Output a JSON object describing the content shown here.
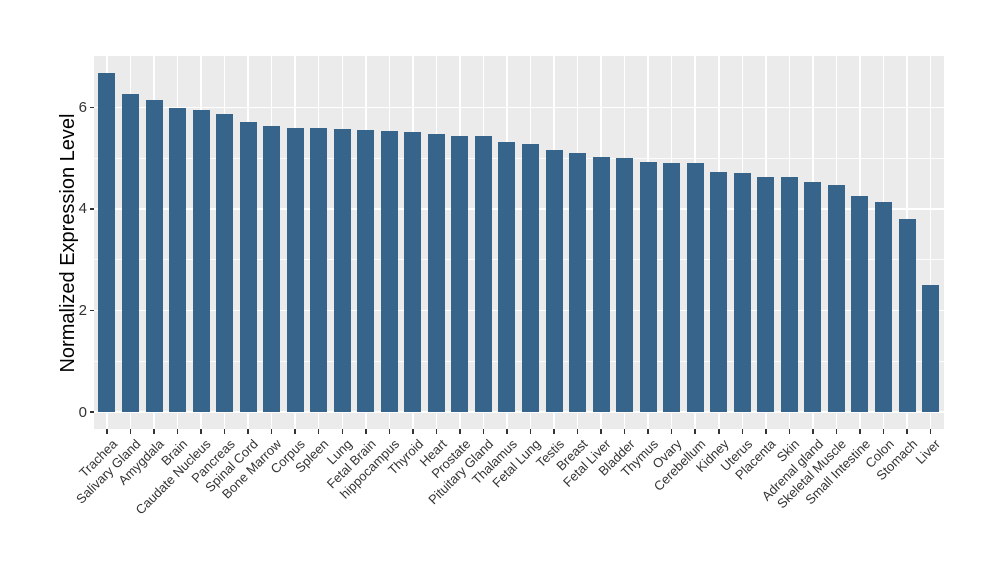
{
  "figure": {
    "background": "#FFFFFF"
  },
  "chart_data": {
    "type": "bar",
    "title": "",
    "xlabel": "",
    "ylabel": "Normalized Expression Level",
    "categories": [
      "Trachea",
      "Salivary Gland",
      "Amygdala",
      "Brain",
      "Caudate Nucleus",
      "Pancreas",
      "Spinal Cord",
      "Bone Marrow",
      "Corpus",
      "Spleen",
      "Lung",
      "Fetal Brain",
      "hippocampus",
      "Thyroid",
      "Heart",
      "Prostate",
      "Pituitary Gland",
      "Thalamus",
      "Fetal Lung",
      "Testis",
      "Breast",
      "Fetal Liver",
      "Bladder",
      "Thymus",
      "Ovary",
      "Cerebellum",
      "Kidney",
      "Uterus",
      "Placenta",
      "Skin",
      "Adrenal gland",
      "Skeletal Muscle",
      "Small Intestine",
      "Colon",
      "Stomach",
      "Liver"
    ],
    "values": [
      6.67,
      6.26,
      6.14,
      5.99,
      5.95,
      5.87,
      5.71,
      5.63,
      5.6,
      5.6,
      5.58,
      5.55,
      5.53,
      5.51,
      5.47,
      5.44,
      5.43,
      5.31,
      5.27,
      5.16,
      5.1,
      5.03,
      5.01,
      4.92,
      4.9,
      4.9,
      4.72,
      4.71,
      4.62,
      4.62,
      4.54,
      4.48,
      4.25,
      4.13,
      3.81,
      2.5
    ],
    "y_ticks": [
      0,
      2,
      4,
      6
    ],
    "y_minor_ticks": [
      1,
      3,
      5
    ],
    "ylim": [
      -0.33,
      7.01
    ],
    "x_tick_angle_degrees": 45,
    "grid": true,
    "legend": "none",
    "colors": {
      "bar": "#36648B",
      "panel_background": "#EBEBEB",
      "gridline": "#FFFFFF",
      "tick_label": "#333333",
      "axis_title": "#000000",
      "tick_mark": "#333333",
      "outer_background": "#FFFFFF"
    }
  }
}
